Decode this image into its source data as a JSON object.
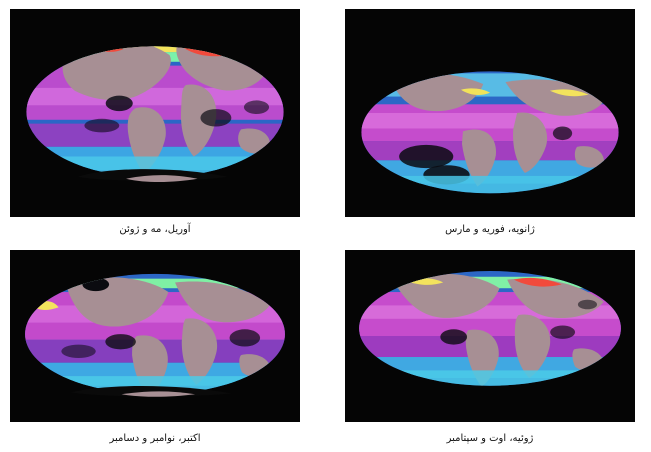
{
  "figure": {
    "panels": [
      {
        "id": "p1",
        "caption": "آوریل، مه و ژوئن"
      },
      {
        "id": "p2",
        "caption": "ژانویه، فوریه و مارس"
      },
      {
        "id": "p3",
        "caption": "اکتبر، نوامبر و دسامبر"
      },
      {
        "id": "p4",
        "caption": "ژوئیه، اوت و سپتامبر"
      }
    ],
    "colors": {
      "background": "#050505",
      "land": "#a78f94",
      "low": "#b02bbd",
      "low_mid": "#d058d9",
      "mid": "#45a6e2",
      "mid_high": "#7cf0a7",
      "high": "#f3e45f",
      "very_high": "#f24c3e"
    },
    "legend_icon": "color-scale-bar"
  }
}
